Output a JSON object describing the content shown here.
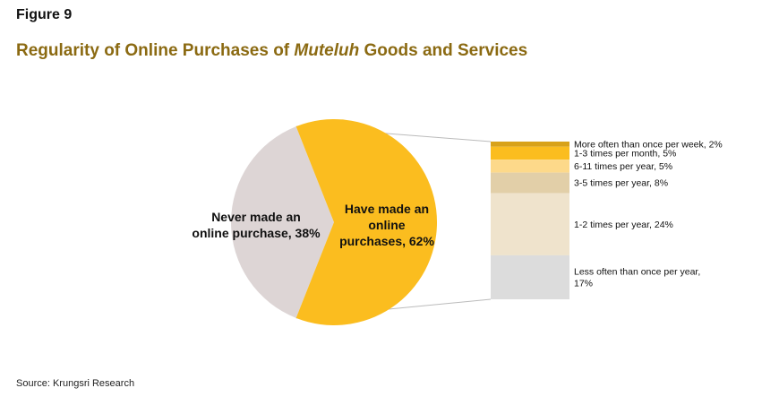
{
  "figure_label": "Figure 9",
  "title": {
    "prefix": "Regularity of Online Purchases of ",
    "italic": "Muteluh",
    "suffix": " Goods and Services"
  },
  "source": "Source: Krungsri Research",
  "colors": {
    "title": "#8b6a12",
    "pie_yes": "#fbbd1f",
    "pie_no": "#ddd5d5",
    "connector": "#bbbbbb"
  },
  "chart_data": {
    "type": "pie",
    "title": "Regularity of Online Purchases of Muteluh Goods and Services",
    "pie": [
      {
        "label_lines": [
          "Never made an",
          "online purchase, 38%"
        ],
        "value": 38,
        "color": "#ddd5d5"
      },
      {
        "label_lines": [
          "Have made an",
          "online",
          "purchases, 62%"
        ],
        "value": 62,
        "color": "#fbbd1f"
      }
    ],
    "breakdown_bar": {
      "type": "stacked_bar",
      "parent": "Have made an online purchases",
      "segments": [
        {
          "label_lines": [
            "More often than once per week, 2%"
          ],
          "value": 2,
          "color": "#d8a21a"
        },
        {
          "label_lines": [
            "1-3 times per month, 5%"
          ],
          "value": 5,
          "color": "#fbbd1f"
        },
        {
          "label_lines": [
            "6-11 times per year, 5%"
          ],
          "value": 5,
          "color": "#fdd98a"
        },
        {
          "label_lines": [
            "3-5 times per year, 8%"
          ],
          "value": 8,
          "color": "#e2cfa8"
        },
        {
          "label_lines": [
            "1-2 times per year, 24%"
          ],
          "value": 24,
          "color": "#efe3cc"
        },
        {
          "label_lines": [
            "Less often than once per year,",
            "17%"
          ],
          "value": 17,
          "color": "#dcdcdc"
        }
      ]
    }
  }
}
